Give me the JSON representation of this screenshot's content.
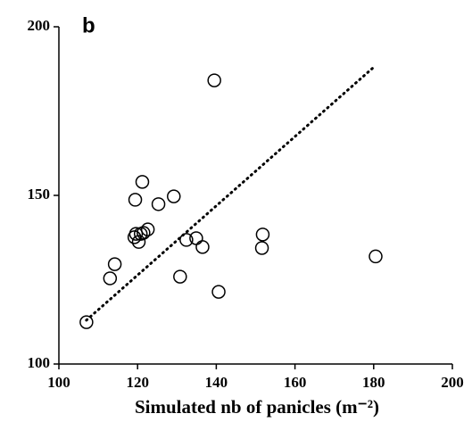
{
  "chart_data": {
    "type": "scatter",
    "title": "b",
    "xlabel": "Simulated nb of panicles (m⁻²)",
    "x": [
      107,
      113,
      114.2,
      119.2,
      119.6,
      120.3,
      120.8,
      121.5,
      122.6,
      119.4,
      121.2,
      125.3,
      129.2,
      132.4,
      134.9,
      136.5,
      130.8,
      139.5,
      140.6,
      151.8,
      151.6,
      180.5
    ],
    "values": [
      112.4,
      125.4,
      129.6,
      137.6,
      138.6,
      136.2,
      138.6,
      138.9,
      139.9,
      148.7,
      154,
      147.4,
      149.7,
      136.8,
      137.3,
      134.7,
      125.9,
      184.1,
      121.4,
      138.4,
      134.4,
      131.9
    ],
    "trendline": {
      "x": [
        107,
        180
      ],
      "y": [
        113,
        188
      ]
    },
    "xlim": [
      100,
      200
    ],
    "ylim": [
      100,
      200
    ],
    "xticks": [
      100,
      120,
      140,
      160,
      180,
      200
    ],
    "yticks": [
      100,
      150,
      200
    ],
    "color": "#000000"
  }
}
